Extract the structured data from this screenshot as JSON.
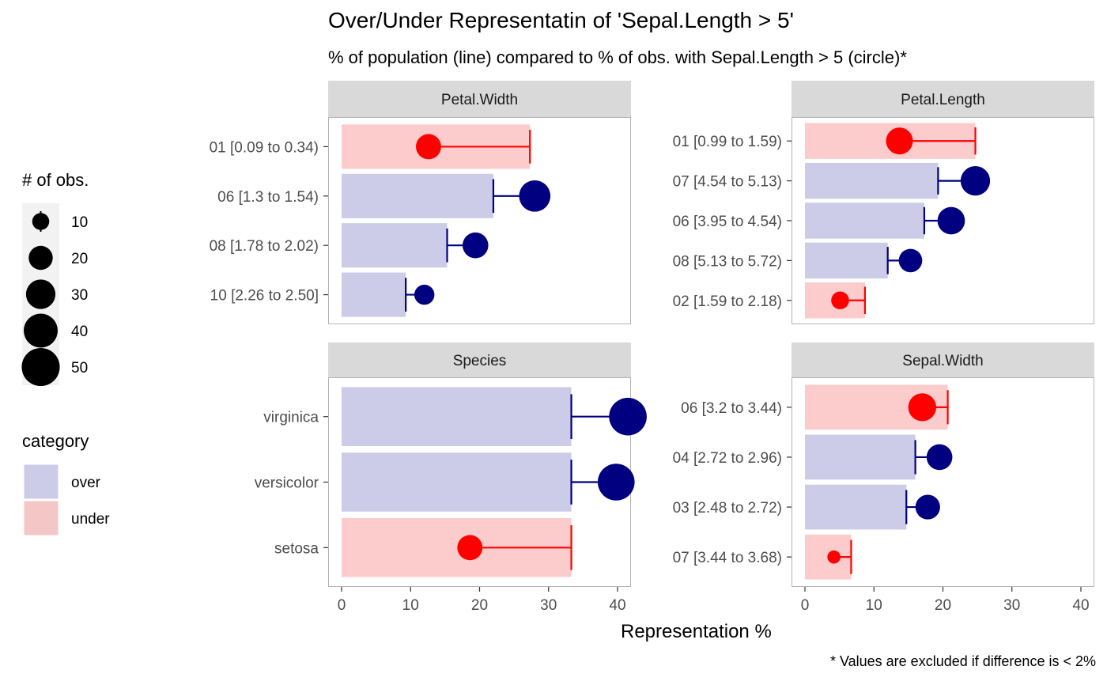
{
  "title": "Over/Under Representatin of 'Sepal.Length > 5'",
  "subtitle": "% of population (line) compared to % of obs. with Sepal.Length > 5 (circle)*",
  "caption": "* Values are excluded if difference is < 2%",
  "colors": {
    "over_fill": "#cccce8",
    "under_fill": "#fccccc",
    "over_point": "#000080",
    "under_point": "#ff0000",
    "strip_bg": "#d9d9d9",
    "panel_border": "#b3b3b3"
  },
  "legend": {
    "size_title": "# of obs.",
    "size_items": [
      {
        "label": "10",
        "value": 10
      },
      {
        "label": "20",
        "value": 20
      },
      {
        "label": "30",
        "value": 30
      },
      {
        "label": "40",
        "value": 40
      },
      {
        "label": "50",
        "value": 50
      }
    ],
    "category_title": "category",
    "category_items": [
      {
        "label": "over",
        "key": "over"
      },
      {
        "label": "under",
        "key": "under"
      }
    ]
  },
  "chart_data": {
    "type": "bar",
    "xlabel": "Representation %",
    "xlim": [
      0,
      40
    ],
    "x_ticks": [
      "0",
      "10",
      "20",
      "30",
      "40"
    ],
    "panels": [
      {
        "name": "Petal.Width",
        "rows": [
          {
            "label": "01 [0.09 to 0.34)",
            "population": 27.3,
            "observed": 12.6,
            "n": 22,
            "category": "under"
          },
          {
            "label": "06 [1.3 to 1.54)",
            "population": 22.0,
            "observed": 28.0,
            "n": 34,
            "category": "over"
          },
          {
            "label": "08 [1.78 to 2.02)",
            "population": 15.3,
            "observed": 19.4,
            "n": 23,
            "category": "over"
          },
          {
            "label": "10 [2.26 to 2.50]",
            "population": 9.3,
            "observed": 12.0,
            "n": 14,
            "category": "over"
          }
        ]
      },
      {
        "name": "Petal.Length",
        "rows": [
          {
            "label": "01 [0.99 to 1.59)",
            "population": 24.7,
            "observed": 13.7,
            "n": 25,
            "category": "under"
          },
          {
            "label": "07 [4.54 to 5.13)",
            "population": 19.3,
            "observed": 24.7,
            "n": 30,
            "category": "over"
          },
          {
            "label": "06 [3.95 to 4.54)",
            "population": 17.3,
            "observed": 21.2,
            "n": 26,
            "category": "over"
          },
          {
            "label": "08 [5.13 to 5.72)",
            "population": 12.0,
            "observed": 15.3,
            "n": 19,
            "category": "over"
          },
          {
            "label": "02 [1.59 to 2.18)",
            "population": 8.7,
            "observed": 5.1,
            "n": 11,
            "category": "under"
          }
        ]
      },
      {
        "name": "Species",
        "rows": [
          {
            "label": "virginica",
            "population": 33.3,
            "observed": 41.5,
            "n": 49,
            "category": "over"
          },
          {
            "label": "versicolor",
            "population": 33.3,
            "observed": 39.8,
            "n": 47,
            "category": "over"
          },
          {
            "label": "setosa",
            "population": 33.3,
            "observed": 18.6,
            "n": 22,
            "category": "under"
          }
        ]
      },
      {
        "name": "Sepal.Width",
        "rows": [
          {
            "label": "06 [3.2 to 3.44)",
            "population": 20.7,
            "observed": 17.0,
            "n": 27,
            "category": "under"
          },
          {
            "label": "04 [2.72 to 2.96)",
            "population": 16.0,
            "observed": 19.5,
            "n": 23,
            "category": "over"
          },
          {
            "label": "03 [2.48 to 2.72)",
            "population": 14.7,
            "observed": 17.8,
            "n": 21,
            "category": "over"
          },
          {
            "label": "07 [3.44 to 3.68)",
            "population": 6.7,
            "observed": 4.2,
            "n": 6,
            "category": "under"
          }
        ]
      }
    ]
  }
}
